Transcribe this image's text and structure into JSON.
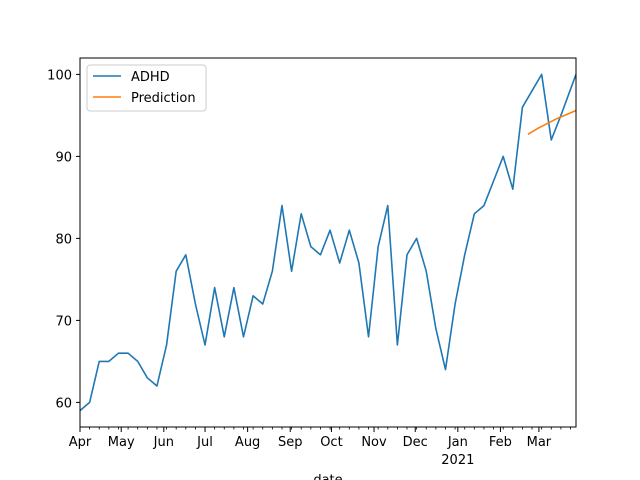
{
  "chart_data": {
    "type": "line",
    "title": "",
    "xlabel": "date",
    "ylabel": "",
    "ylim": [
      57,
      102
    ],
    "xlim": [
      "2020-04-01",
      "2021-03-28"
    ],
    "grid": false,
    "legend_placement": "top-left",
    "x_ticks": [
      {
        "date": "2020-04-01",
        "label": "Apr"
      },
      {
        "date": "2020-05-01",
        "label": "May"
      },
      {
        "date": "2020-06-01",
        "label": "Jun"
      },
      {
        "date": "2020-07-01",
        "label": "Jul"
      },
      {
        "date": "2020-08-01",
        "label": "Aug"
      },
      {
        "date": "2020-09-01",
        "label": "Sep"
      },
      {
        "date": "2020-10-01",
        "label": "Oct"
      },
      {
        "date": "2020-11-01",
        "label": "Nov"
      },
      {
        "date": "2020-12-01",
        "label": "Dec"
      },
      {
        "date": "2021-01-01",
        "label": "Jan",
        "sublabel": "2021"
      },
      {
        "date": "2021-02-01",
        "label": "Feb"
      },
      {
        "date": "2021-03-01",
        "label": "Mar"
      }
    ],
    "y_ticks": [
      60,
      70,
      80,
      90,
      100
    ],
    "series": [
      {
        "name": "ADHD",
        "color": "#1f77b4",
        "points": [
          [
            "2020-04-01",
            59
          ],
          [
            "2020-04-08",
            60
          ],
          [
            "2020-04-15",
            65
          ],
          [
            "2020-04-22",
            65
          ],
          [
            "2020-04-29",
            66
          ],
          [
            "2020-05-06",
            66
          ],
          [
            "2020-05-13",
            65
          ],
          [
            "2020-05-20",
            63
          ],
          [
            "2020-05-27",
            62
          ],
          [
            "2020-06-03",
            67
          ],
          [
            "2020-06-10",
            76
          ],
          [
            "2020-06-17",
            78
          ],
          [
            "2020-06-24",
            72
          ],
          [
            "2020-07-01",
            67
          ],
          [
            "2020-07-08",
            74
          ],
          [
            "2020-07-15",
            68
          ],
          [
            "2020-07-22",
            74
          ],
          [
            "2020-07-29",
            68
          ],
          [
            "2020-08-05",
            73
          ],
          [
            "2020-08-12",
            72
          ],
          [
            "2020-08-19",
            76
          ],
          [
            "2020-08-26",
            84
          ],
          [
            "2020-09-02",
            76
          ],
          [
            "2020-09-09",
            83
          ],
          [
            "2020-09-16",
            79
          ],
          [
            "2020-09-23",
            78
          ],
          [
            "2020-09-30",
            81
          ],
          [
            "2020-10-07",
            77
          ],
          [
            "2020-10-14",
            81
          ],
          [
            "2020-10-21",
            77
          ],
          [
            "2020-10-28",
            68
          ],
          [
            "2020-11-04",
            79
          ],
          [
            "2020-11-11",
            84
          ],
          [
            "2020-11-18",
            67
          ],
          [
            "2020-11-25",
            78
          ],
          [
            "2020-12-02",
            80
          ],
          [
            "2020-12-09",
            76
          ],
          [
            "2020-12-16",
            69
          ],
          [
            "2020-12-23",
            64
          ],
          [
            "2020-12-30",
            72
          ],
          [
            "2021-01-06",
            78
          ],
          [
            "2021-01-13",
            83
          ],
          [
            "2021-01-20",
            84
          ],
          [
            "2021-01-27",
            87
          ],
          [
            "2021-02-03",
            90
          ],
          [
            "2021-02-10",
            86
          ],
          [
            "2021-02-17",
            96
          ],
          [
            "2021-02-24",
            98
          ],
          [
            "2021-03-03",
            100
          ],
          [
            "2021-03-10",
            92
          ],
          [
            "2021-03-17",
            95
          ],
          [
            "2021-03-28",
            100
          ]
        ]
      },
      {
        "name": "Prediction",
        "color": "#ff7f0e",
        "points": [
          [
            "2021-02-21",
            92.7
          ],
          [
            "2021-02-28",
            93.4
          ],
          [
            "2021-03-07",
            94.0
          ],
          [
            "2021-03-14",
            94.6
          ],
          [
            "2021-03-21",
            95.1
          ],
          [
            "2021-03-28",
            95.6
          ]
        ]
      }
    ]
  }
}
